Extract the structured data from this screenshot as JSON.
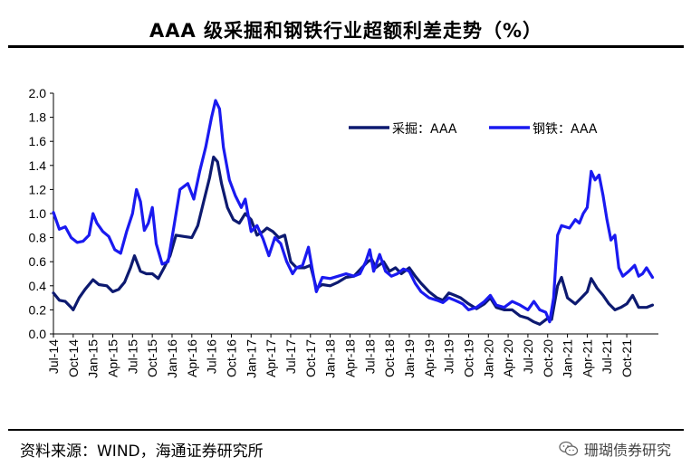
{
  "title": "AAA 级采掘和钢铁行业超额利差走势（%）",
  "source": "资料来源：WIND，海通证券研究所",
  "watermark": "珊瑚债券研究",
  "chart_data": {
    "type": "line",
    "title": "AAA 级采掘和钢铁行业超额利差走势（%）",
    "xlabel": "",
    "ylabel": "",
    "ylim": [
      0,
      2.0
    ],
    "yticks": [
      "2.0",
      "1.8",
      "1.6",
      "1.4",
      "1.2",
      "1.0",
      "0.8",
      "0.6",
      "0.4",
      "0.2",
      "0.0"
    ],
    "xticks": [
      "Jul-14",
      "Oct-14",
      "Jan-15",
      "Apr-15",
      "Jul-15",
      "Oct-15",
      "Jan-16",
      "Apr-16",
      "Jul-16",
      "Oct-16",
      "Jan-17",
      "Apr-17",
      "Jul-17",
      "Oct-17",
      "Jan-18",
      "Apr-18",
      "Jul-18",
      "Oct-18",
      "Jan-19",
      "Apr-19",
      "Jul-19",
      "Oct-19",
      "Jan-20",
      "Apr-20",
      "Jul-20",
      "Oct-20",
      "Jan-21",
      "Apr-21",
      "Jul-21",
      "Oct-21"
    ],
    "legend_position": "top-right",
    "colors": {
      "mining": "#0d1a70",
      "steel": "#1a1af0"
    },
    "series": [
      {
        "name": "采掘：AAA",
        "key": "mining",
        "points": [
          [
            0,
            0.34
          ],
          [
            0.3,
            0.28
          ],
          [
            0.6,
            0.27
          ],
          [
            0.9,
            0.22
          ],
          [
            1.0,
            0.2
          ],
          [
            1.3,
            0.3
          ],
          [
            1.6,
            0.37
          ],
          [
            2.0,
            0.45
          ],
          [
            2.3,
            0.41
          ],
          [
            2.7,
            0.4
          ],
          [
            3.0,
            0.35
          ],
          [
            3.3,
            0.37
          ],
          [
            3.6,
            0.43
          ],
          [
            3.9,
            0.55
          ],
          [
            4.1,
            0.65
          ],
          [
            4.4,
            0.52
          ],
          [
            4.7,
            0.5
          ],
          [
            5.0,
            0.5
          ],
          [
            5.3,
            0.46
          ],
          [
            5.6,
            0.55
          ],
          [
            5.9,
            0.65
          ],
          [
            6.2,
            0.82
          ],
          [
            6.6,
            0.81
          ],
          [
            7.0,
            0.8
          ],
          [
            7.3,
            0.9
          ],
          [
            7.6,
            1.1
          ],
          [
            7.9,
            1.3
          ],
          [
            8.1,
            1.47
          ],
          [
            8.3,
            1.43
          ],
          [
            8.5,
            1.25
          ],
          [
            8.8,
            1.05
          ],
          [
            9.1,
            0.95
          ],
          [
            9.4,
            0.92
          ],
          [
            9.7,
            1.0
          ],
          [
            10.0,
            0.95
          ],
          [
            10.3,
            0.82
          ],
          [
            10.6,
            0.85
          ],
          [
            10.8,
            0.88
          ],
          [
            11.1,
            0.85
          ],
          [
            11.4,
            0.8
          ],
          [
            11.7,
            0.82
          ],
          [
            12.0,
            0.6
          ],
          [
            12.3,
            0.55
          ],
          [
            12.7,
            0.55
          ],
          [
            13.0,
            0.57
          ],
          [
            13.3,
            0.38
          ],
          [
            13.6,
            0.41
          ],
          [
            14.0,
            0.4
          ],
          [
            14.4,
            0.43
          ],
          [
            14.8,
            0.47
          ],
          [
            15.2,
            0.48
          ],
          [
            15.6,
            0.55
          ],
          [
            15.9,
            0.6
          ],
          [
            16.1,
            0.62
          ],
          [
            16.3,
            0.55
          ],
          [
            16.7,
            0.6
          ],
          [
            17.0,
            0.52
          ],
          [
            17.3,
            0.55
          ],
          [
            17.6,
            0.5
          ],
          [
            18.0,
            0.55
          ],
          [
            18.3,
            0.48
          ],
          [
            18.6,
            0.42
          ],
          [
            19.0,
            0.35
          ],
          [
            19.4,
            0.3
          ],
          [
            19.7,
            0.28
          ],
          [
            20.0,
            0.34
          ],
          [
            20.3,
            0.32
          ],
          [
            20.6,
            0.3
          ],
          [
            21.0,
            0.25
          ],
          [
            21.4,
            0.21
          ],
          [
            21.8,
            0.25
          ],
          [
            22.1,
            0.3
          ],
          [
            22.4,
            0.22
          ],
          [
            22.8,
            0.2
          ],
          [
            23.2,
            0.2
          ],
          [
            23.6,
            0.15
          ],
          [
            24.0,
            0.13
          ],
          [
            24.3,
            0.1
          ],
          [
            24.6,
            0.08
          ],
          [
            25.0,
            0.13
          ],
          [
            25.2,
            0.12
          ],
          [
            25.5,
            0.4
          ],
          [
            25.7,
            0.47
          ],
          [
            26.0,
            0.3
          ],
          [
            26.4,
            0.25
          ],
          [
            26.7,
            0.3
          ],
          [
            27.0,
            0.35
          ],
          [
            27.2,
            0.46
          ],
          [
            27.5,
            0.38
          ],
          [
            27.8,
            0.32
          ],
          [
            28.1,
            0.25
          ],
          [
            28.4,
            0.2
          ],
          [
            28.7,
            0.22
          ],
          [
            29.0,
            0.25
          ],
          [
            29.3,
            0.32
          ],
          [
            29.6,
            0.22
          ],
          [
            30.0,
            0.22
          ],
          [
            30.3,
            0.24
          ]
        ]
      },
      {
        "name": "钢铁：AAA",
        "key": "steel",
        "points": [
          [
            0,
            1.01
          ],
          [
            0.3,
            0.87
          ],
          [
            0.6,
            0.89
          ],
          [
            0.9,
            0.8
          ],
          [
            1.2,
            0.76
          ],
          [
            1.5,
            0.77
          ],
          [
            1.8,
            0.82
          ],
          [
            2.0,
            1.0
          ],
          [
            2.2,
            0.92
          ],
          [
            2.5,
            0.85
          ],
          [
            2.8,
            0.81
          ],
          [
            3.1,
            0.7
          ],
          [
            3.4,
            0.67
          ],
          [
            3.7,
            0.85
          ],
          [
            4.0,
            1.0
          ],
          [
            4.2,
            1.2
          ],
          [
            4.4,
            1.1
          ],
          [
            4.6,
            0.86
          ],
          [
            4.8,
            0.92
          ],
          [
            5.0,
            1.05
          ],
          [
            5.2,
            0.75
          ],
          [
            5.5,
            0.58
          ],
          [
            5.8,
            0.6
          ],
          [
            6.1,
            0.9
          ],
          [
            6.4,
            1.2
          ],
          [
            6.8,
            1.25
          ],
          [
            7.1,
            1.12
          ],
          [
            7.4,
            1.35
          ],
          [
            7.7,
            1.55
          ],
          [
            8.0,
            1.8
          ],
          [
            8.2,
            1.94
          ],
          [
            8.4,
            1.87
          ],
          [
            8.6,
            1.55
          ],
          [
            8.9,
            1.28
          ],
          [
            9.2,
            1.15
          ],
          [
            9.5,
            1.05
          ],
          [
            9.7,
            1.12
          ],
          [
            10.0,
            0.85
          ],
          [
            10.3,
            0.9
          ],
          [
            10.6,
            0.79
          ],
          [
            10.9,
            0.65
          ],
          [
            11.2,
            0.8
          ],
          [
            11.5,
            0.75
          ],
          [
            11.8,
            0.6
          ],
          [
            12.1,
            0.5
          ],
          [
            12.3,
            0.55
          ],
          [
            12.6,
            0.57
          ],
          [
            12.9,
            0.72
          ],
          [
            13.1,
            0.53
          ],
          [
            13.3,
            0.35
          ],
          [
            13.6,
            0.47
          ],
          [
            14.0,
            0.46
          ],
          [
            14.4,
            0.48
          ],
          [
            14.8,
            0.5
          ],
          [
            15.2,
            0.48
          ],
          [
            15.5,
            0.5
          ],
          [
            15.8,
            0.6
          ],
          [
            16.0,
            0.7
          ],
          [
            16.2,
            0.52
          ],
          [
            16.5,
            0.66
          ],
          [
            16.8,
            0.52
          ],
          [
            17.1,
            0.48
          ],
          [
            17.4,
            0.5
          ],
          [
            17.7,
            0.54
          ],
          [
            18.0,
            0.52
          ],
          [
            18.3,
            0.42
          ],
          [
            18.6,
            0.35
          ],
          [
            19.0,
            0.3
          ],
          [
            19.4,
            0.28
          ],
          [
            19.7,
            0.26
          ],
          [
            20.0,
            0.3
          ],
          [
            20.3,
            0.28
          ],
          [
            20.7,
            0.25
          ],
          [
            21.0,
            0.2
          ],
          [
            21.4,
            0.22
          ],
          [
            21.8,
            0.27
          ],
          [
            22.1,
            0.32
          ],
          [
            22.4,
            0.24
          ],
          [
            22.8,
            0.22
          ],
          [
            23.2,
            0.27
          ],
          [
            23.6,
            0.24
          ],
          [
            24.0,
            0.2
          ],
          [
            24.3,
            0.27
          ],
          [
            24.6,
            0.2
          ],
          [
            24.9,
            0.18
          ],
          [
            25.1,
            0.1
          ],
          [
            25.3,
            0.3
          ],
          [
            25.5,
            0.82
          ],
          [
            25.7,
            0.9
          ],
          [
            26.1,
            0.88
          ],
          [
            26.4,
            0.95
          ],
          [
            26.6,
            0.92
          ],
          [
            26.8,
            1.0
          ],
          [
            27.0,
            1.05
          ],
          [
            27.2,
            1.35
          ],
          [
            27.4,
            1.28
          ],
          [
            27.6,
            1.32
          ],
          [
            27.8,
            1.15
          ],
          [
            28.0,
            0.95
          ],
          [
            28.2,
            0.78
          ],
          [
            28.4,
            0.82
          ],
          [
            28.6,
            0.55
          ],
          [
            28.8,
            0.48
          ],
          [
            29.1,
            0.52
          ],
          [
            29.4,
            0.57
          ],
          [
            29.6,
            0.48
          ],
          [
            29.8,
            0.5
          ],
          [
            30.0,
            0.55
          ],
          [
            30.3,
            0.47
          ]
        ]
      }
    ]
  }
}
